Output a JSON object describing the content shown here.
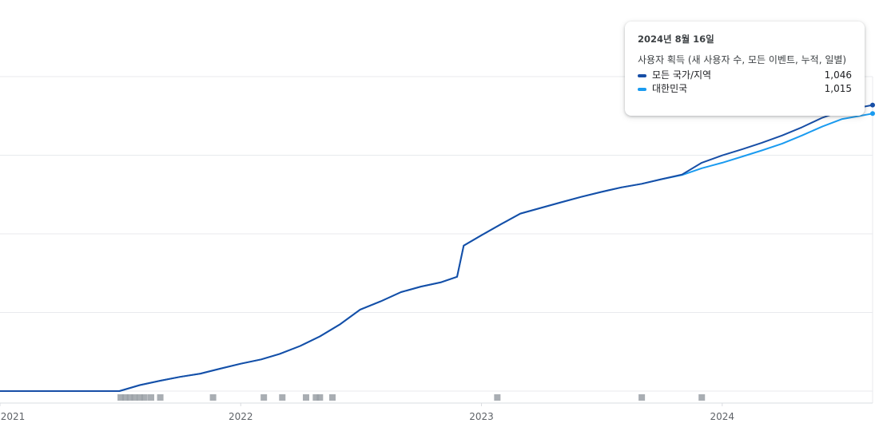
{
  "chart_data": {
    "type": "line",
    "x_ticks": [
      "2021",
      "2022",
      "2023",
      "2024"
    ],
    "x_tick_dates": [
      "2021-01-01",
      "2022-01-01",
      "2023-01-01",
      "2024-01-01"
    ],
    "x_range": [
      "2021-01-01",
      "2024-08-16"
    ],
    "y_range": [
      0,
      1150
    ],
    "grid": true,
    "series": [
      {
        "name": "모든 국가/지역",
        "color": "#174ea6",
        "points": [
          [
            "2021-01-01",
            0
          ],
          [
            "2021-07-01",
            0
          ],
          [
            "2021-08-01",
            22
          ],
          [
            "2021-09-01",
            38
          ],
          [
            "2021-10-01",
            52
          ],
          [
            "2021-11-01",
            64
          ],
          [
            "2021-12-01",
            82
          ],
          [
            "2022-01-01",
            100
          ],
          [
            "2022-02-01",
            116
          ],
          [
            "2022-03-01",
            136
          ],
          [
            "2022-04-01",
            165
          ],
          [
            "2022-05-01",
            200
          ],
          [
            "2022-06-01",
            245
          ],
          [
            "2022-07-01",
            298
          ],
          [
            "2022-08-01",
            328
          ],
          [
            "2022-09-01",
            362
          ],
          [
            "2022-10-01",
            382
          ],
          [
            "2022-11-01",
            398
          ],
          [
            "2022-11-25",
            418
          ],
          [
            "2022-12-05",
            532
          ],
          [
            "2023-01-01",
            570
          ],
          [
            "2023-02-01",
            612
          ],
          [
            "2023-03-01",
            649
          ],
          [
            "2023-04-01",
            670
          ],
          [
            "2023-05-01",
            690
          ],
          [
            "2023-06-01",
            710
          ],
          [
            "2023-07-01",
            728
          ],
          [
            "2023-08-01",
            745
          ],
          [
            "2023-09-01",
            758
          ],
          [
            "2023-10-01",
            775
          ],
          [
            "2023-11-01",
            792
          ],
          [
            "2023-12-01",
            835
          ],
          [
            "2024-01-01",
            862
          ],
          [
            "2024-02-01",
            885
          ],
          [
            "2024-03-01",
            908
          ],
          [
            "2024-04-01",
            935
          ],
          [
            "2024-05-01",
            965
          ],
          [
            "2024-06-01",
            1000
          ],
          [
            "2024-07-01",
            1025
          ],
          [
            "2024-08-16",
            1046
          ]
        ]
      },
      {
        "name": "대한민국",
        "color": "#1a9bf0",
        "points": [
          [
            "2021-01-01",
            0
          ],
          [
            "2021-07-01",
            0
          ],
          [
            "2021-08-01",
            22
          ],
          [
            "2021-09-01",
            38
          ],
          [
            "2021-10-01",
            52
          ],
          [
            "2021-11-01",
            64
          ],
          [
            "2021-12-01",
            82
          ],
          [
            "2022-01-01",
            100
          ],
          [
            "2022-02-01",
            116
          ],
          [
            "2022-03-01",
            136
          ],
          [
            "2022-04-01",
            165
          ],
          [
            "2022-05-01",
            200
          ],
          [
            "2022-06-01",
            245
          ],
          [
            "2022-07-01",
            298
          ],
          [
            "2022-08-01",
            328
          ],
          [
            "2022-09-01",
            362
          ],
          [
            "2022-10-01",
            382
          ],
          [
            "2022-11-01",
            398
          ],
          [
            "2022-11-25",
            418
          ],
          [
            "2022-12-05",
            532
          ],
          [
            "2023-01-01",
            570
          ],
          [
            "2023-02-01",
            612
          ],
          [
            "2023-03-01",
            649
          ],
          [
            "2023-04-01",
            670
          ],
          [
            "2023-05-01",
            690
          ],
          [
            "2023-06-01",
            710
          ],
          [
            "2023-07-01",
            728
          ],
          [
            "2023-08-01",
            745
          ],
          [
            "2023-09-01",
            758
          ],
          [
            "2023-10-01",
            775
          ],
          [
            "2023-11-01",
            790
          ],
          [
            "2023-12-01",
            815
          ],
          [
            "2024-01-01",
            835
          ],
          [
            "2024-02-01",
            858
          ],
          [
            "2024-03-01",
            880
          ],
          [
            "2024-04-01",
            905
          ],
          [
            "2024-05-01",
            935
          ],
          [
            "2024-06-01",
            968
          ],
          [
            "2024-07-01",
            995
          ],
          [
            "2024-08-16",
            1015
          ]
        ]
      }
    ],
    "annotation_marker_dates": [
      "2021-07-03",
      "2021-07-10",
      "2021-07-17",
      "2021-07-24",
      "2021-08-01",
      "2021-08-08",
      "2021-08-18",
      "2021-09-01",
      "2021-11-20",
      "2022-02-05",
      "2022-03-05",
      "2022-04-10",
      "2022-04-25",
      "2022-05-01",
      "2022-05-20",
      "2023-01-25",
      "2023-09-01",
      "2023-12-01"
    ]
  },
  "tooltip": {
    "date": "2024년 8월 16일",
    "metric": "사용자 획득 (새 사용자 수, 모든 이벤트, 누적, 일별)",
    "rows": [
      {
        "name": "모든 국가/지역",
        "value": "1,046",
        "color": "#174ea6"
      },
      {
        "name": "대한민국",
        "value": "1,015",
        "color": "#1a9bf0"
      }
    ]
  },
  "colors": {
    "grid": "#e8eaed",
    "axis": "#dadce0",
    "marker": "#9aa0a6",
    "marker_dark": "#5f6368"
  }
}
